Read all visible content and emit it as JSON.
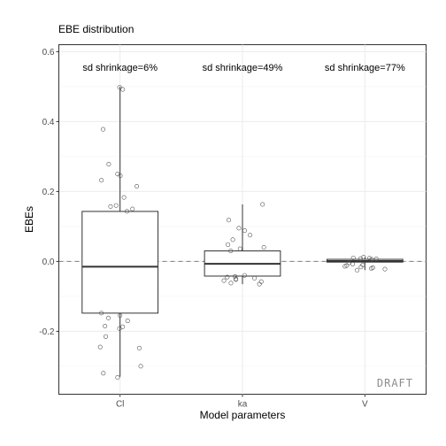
{
  "chart_data": {
    "type": "box",
    "title": "EBE distribution",
    "xlabel": "Model parameters",
    "ylabel": "EBEs",
    "ylim": [
      -0.38,
      0.62
    ],
    "y_ticks": [
      -0.2,
      0.0,
      0.2,
      0.4,
      0.6
    ],
    "y_tick_labels": [
      "-0.2",
      "0.0",
      "0.2",
      "0.4",
      "0.6"
    ],
    "grid": true,
    "reference_line": {
      "y": 0,
      "style": "dashed",
      "color": "#7f7f7f"
    },
    "watermark": "DRAFT",
    "categories": [
      "Cl",
      "ka",
      "V"
    ],
    "boxes": [
      {
        "category": "Cl",
        "annotation": "sd shrinkage=6%",
        "min": -0.33,
        "q1": -0.148,
        "median": -0.015,
        "q3": 0.143,
        "max": 0.5,
        "points": [
          0.498,
          0.492,
          0.378,
          0.278,
          0.25,
          0.245,
          0.232,
          0.215,
          0.183,
          0.16,
          0.157,
          0.15,
          0.143,
          -0.148,
          -0.155,
          -0.162,
          -0.17,
          -0.185,
          -0.187,
          -0.192,
          -0.215,
          -0.245,
          -0.248,
          -0.3,
          -0.32,
          -0.332
        ]
      },
      {
        "category": "ka",
        "annotation": "sd shrinkage=49%",
        "min": -0.065,
        "q1": -0.042,
        "median": -0.007,
        "q3": 0.03,
        "max": 0.163,
        "points": [
          0.163,
          0.118,
          0.095,
          0.088,
          0.075,
          0.062,
          0.048,
          0.04,
          0.036,
          0.03,
          -0.04,
          -0.043,
          -0.045,
          -0.048,
          -0.05,
          -0.052,
          -0.055,
          -0.058,
          -0.062,
          -0.065
        ]
      },
      {
        "category": "V",
        "annotation": "sd shrinkage=77%",
        "min": -0.025,
        "q1": -0.002,
        "median": 0.001,
        "q3": 0.006,
        "max": 0.012,
        "points": [
          0.012,
          0.01,
          0.009,
          0.008,
          0.007,
          0.006,
          -0.004,
          -0.008,
          -0.01,
          -0.012,
          -0.014,
          -0.016,
          -0.018,
          -0.02,
          -0.022,
          -0.025
        ]
      }
    ]
  }
}
